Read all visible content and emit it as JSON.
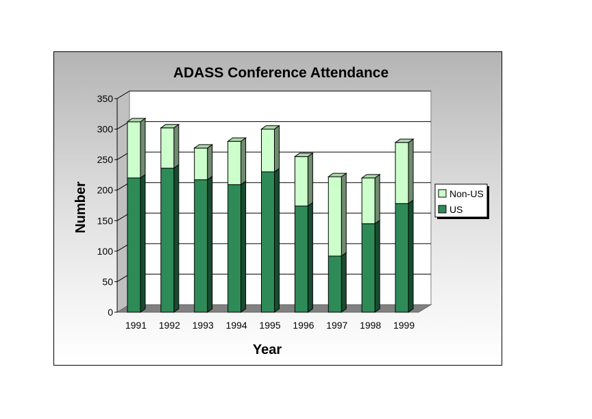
{
  "chart_data": {
    "type": "bar",
    "stacked": true,
    "title": "ADASS Conference Attendance",
    "xlabel": "Year",
    "ylabel": "Number",
    "categories": [
      "1991",
      "1992",
      "1993",
      "1994",
      "1995",
      "1996",
      "1997",
      "1998",
      "1999"
    ],
    "series": [
      {
        "name": "US",
        "values": [
          220,
          236,
          217,
          209,
          230,
          174,
          92,
          145,
          178
        ],
        "color": "#2e8b57"
      },
      {
        "name": "Non-US",
        "values": [
          92,
          66,
          52,
          71,
          70,
          81,
          130,
          75,
          100
        ],
        "color": "#ccffcc"
      }
    ],
    "ylim": [
      0,
      350
    ],
    "yticks": [
      0,
      50,
      100,
      150,
      200,
      250,
      300,
      350
    ],
    "grid": true,
    "legend_position": "right"
  }
}
